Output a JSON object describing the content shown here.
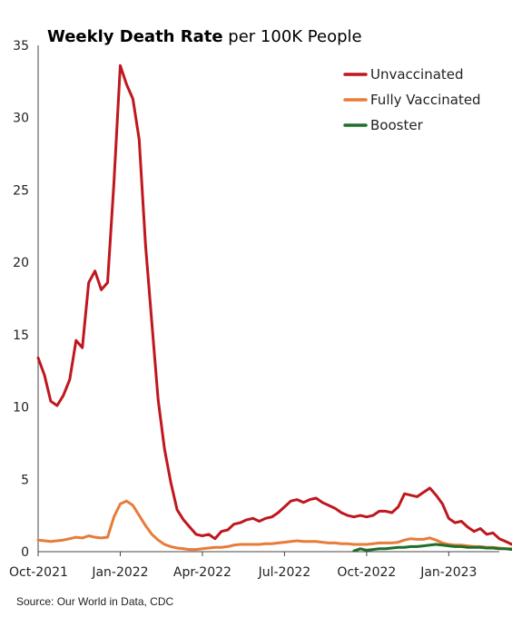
{
  "chart_data": {
    "type": "line",
    "title_bold": "Weekly Death Rate",
    "title_rest": " per 100K People",
    "ylim": [
      0,
      35
    ],
    "yticks": [
      0,
      5,
      10,
      15,
      20,
      25,
      30,
      35
    ],
    "xlim": [
      0,
      73
    ],
    "xticks": [
      {
        "label": "Oct-2021",
        "value": 0
      },
      {
        "label": "Jan-2022",
        "value": 13
      },
      {
        "label": "Apr-2022",
        "value": 26
      },
      {
        "label": "Jul-2022",
        "value": 39
      },
      {
        "label": "Oct-2022",
        "value": 52
      },
      {
        "label": "Jan-2023",
        "value": 65
      }
    ],
    "grid": false,
    "legend_position": "top-right",
    "series": [
      {
        "name": "Unvaccinated",
        "color": "#c0161e",
        "values": [
          13.4,
          12.2,
          10.4,
          10.1,
          10.8,
          11.9,
          14.6,
          14.1,
          18.6,
          19.4,
          18.1,
          18.6,
          25.5,
          33.6,
          32.3,
          31.3,
          28.5,
          21.2,
          15.8,
          10.5,
          7.1,
          4.8,
          2.9,
          2.2,
          1.7,
          1.2,
          1.1,
          1.2,
          0.9,
          1.4,
          1.5,
          1.9,
          2.0,
          2.2,
          2.3,
          2.1,
          2.3,
          2.4,
          2.7,
          3.1,
          3.5,
          3.6,
          3.4,
          3.6,
          3.7,
          3.4,
          3.2,
          3.0,
          2.7,
          2.5,
          2.4,
          2.5,
          2.4,
          2.5,
          2.8,
          2.8,
          2.7,
          3.1,
          4.0,
          3.9,
          3.8,
          4.1,
          4.4,
          3.9,
          3.3,
          2.3,
          2.0,
          2.1,
          1.7,
          1.4,
          1.6,
          1.2,
          1.3,
          0.9,
          0.7,
          0.5
        ],
        "x_start": 0
      },
      {
        "name": "Fully Vaccinated",
        "color": "#e87b3a",
        "values": [
          0.8,
          0.75,
          0.7,
          0.75,
          0.8,
          0.9,
          1.0,
          0.95,
          1.1,
          1.0,
          0.95,
          1.0,
          2.4,
          3.3,
          3.5,
          3.2,
          2.5,
          1.8,
          1.2,
          0.8,
          0.5,
          0.35,
          0.25,
          0.2,
          0.15,
          0.15,
          0.2,
          0.25,
          0.3,
          0.3,
          0.35,
          0.45,
          0.5,
          0.5,
          0.5,
          0.5,
          0.55,
          0.55,
          0.6,
          0.65,
          0.7,
          0.75,
          0.7,
          0.7,
          0.7,
          0.65,
          0.6,
          0.6,
          0.55,
          0.55,
          0.5,
          0.5,
          0.5,
          0.55,
          0.6,
          0.6,
          0.6,
          0.65,
          0.8,
          0.9,
          0.85,
          0.85,
          0.95,
          0.8,
          0.6,
          0.5,
          0.45,
          0.45,
          0.4,
          0.35,
          0.35,
          0.3,
          0.3,
          0.25,
          0.2,
          0.2
        ],
        "x_start": 0
      },
      {
        "name": "Booster",
        "color": "#1f6e2a",
        "values": [
          0.05,
          0.2,
          0.1,
          0.15,
          0.2,
          0.2,
          0.25,
          0.3,
          0.3,
          0.35,
          0.35,
          0.4,
          0.45,
          0.5,
          0.45,
          0.4,
          0.35,
          0.35,
          0.3,
          0.3,
          0.3,
          0.25,
          0.25,
          0.2,
          0.2,
          0.15
        ],
        "x_start": 50
      }
    ]
  },
  "source": "Source: Our World in Data, CDC"
}
